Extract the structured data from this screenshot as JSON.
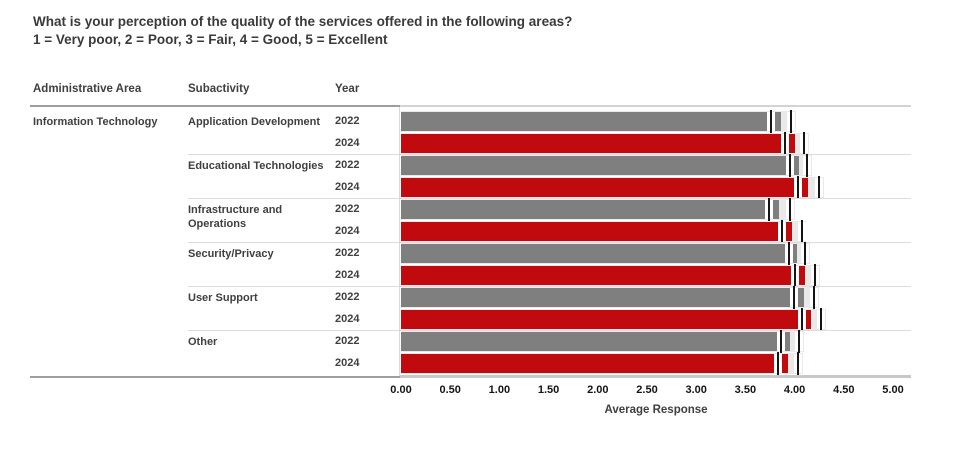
{
  "title": "What is your perception of the quality of the services offered in the following areas?",
  "subtitle": "1 = Very poor, 2 = Poor, 3 = Fair, 4 = Good, 5 = Excellent",
  "columns": {
    "admin_area": "Administrative Area",
    "subactivity": "Subactivity",
    "year": "Year"
  },
  "admin_area_label": "Information Technology",
  "colors": {
    "bar_2022": "#7F7F7F",
    "bar_2024": "#C00A0D",
    "band": "#E9E9E9",
    "marker": "#151515",
    "separator": "#DCDCDC",
    "header_rule_left": "#9E9E9E",
    "header_rule_pane": "#D3D3D3",
    "axis_line": "#C8C8C8",
    "text_dark": "#3F3F3F"
  },
  "chart_data": {
    "type": "bar",
    "orientation": "horizontal",
    "title": "What is your perception of the quality of the services offered in the following areas?",
    "xlabel": "Average Response",
    "xlim": [
      0,
      5
    ],
    "x_ticks": [
      "0.00",
      "0.50",
      "1.00",
      "1.50",
      "2.00",
      "2.50",
      "3.00",
      "3.50",
      "4.00",
      "4.50",
      "5.00"
    ],
    "grid": "group separators only",
    "legend": "none (bar color encodes year: 2022 gray, 2024 red)",
    "series_colors": {
      "2022": "#7F7F7F",
      "2024": "#C00A0D"
    },
    "groups": [
      {
        "subactivity": "Application Development",
        "rows": [
          {
            "year": "2022",
            "value": 3.86,
            "marker_low": 3.76,
            "marker_high": 3.96
          },
          {
            "year": "2024",
            "value": 4.0,
            "marker_low": 3.9,
            "marker_high": 4.1
          }
        ]
      },
      {
        "subactivity": "Educational Technologies",
        "rows": [
          {
            "year": "2022",
            "value": 4.04,
            "marker_low": 3.95,
            "marker_high": 4.13
          },
          {
            "year": "2024",
            "value": 4.14,
            "marker_low": 4.03,
            "marker_high": 4.25
          }
        ]
      },
      {
        "subactivity": "Infrastructure and Operations",
        "rows": [
          {
            "year": "2022",
            "value": 3.84,
            "marker_low": 3.74,
            "marker_high": 3.95
          },
          {
            "year": "2024",
            "value": 3.97,
            "marker_low": 3.87,
            "marker_high": 4.07
          }
        ]
      },
      {
        "subactivity": "Security/Privacy",
        "rows": [
          {
            "year": "2022",
            "value": 4.02,
            "marker_low": 3.94,
            "marker_high": 4.11
          },
          {
            "year": "2024",
            "value": 4.11,
            "marker_low": 4.0,
            "marker_high": 4.21
          }
        ]
      },
      {
        "subactivity": "User Support",
        "rows": [
          {
            "year": "2022",
            "value": 4.1,
            "marker_low": 3.99,
            "marker_high": 4.2
          },
          {
            "year": "2024",
            "value": 4.17,
            "marker_low": 4.07,
            "marker_high": 4.27
          }
        ]
      },
      {
        "subactivity": "Other",
        "rows": [
          {
            "year": "2022",
            "value": 3.95,
            "marker_low": 3.86,
            "marker_high": 4.04
          },
          {
            "year": "2024",
            "value": 3.93,
            "marker_low": 3.83,
            "marker_high": 4.03
          }
        ]
      }
    ]
  }
}
